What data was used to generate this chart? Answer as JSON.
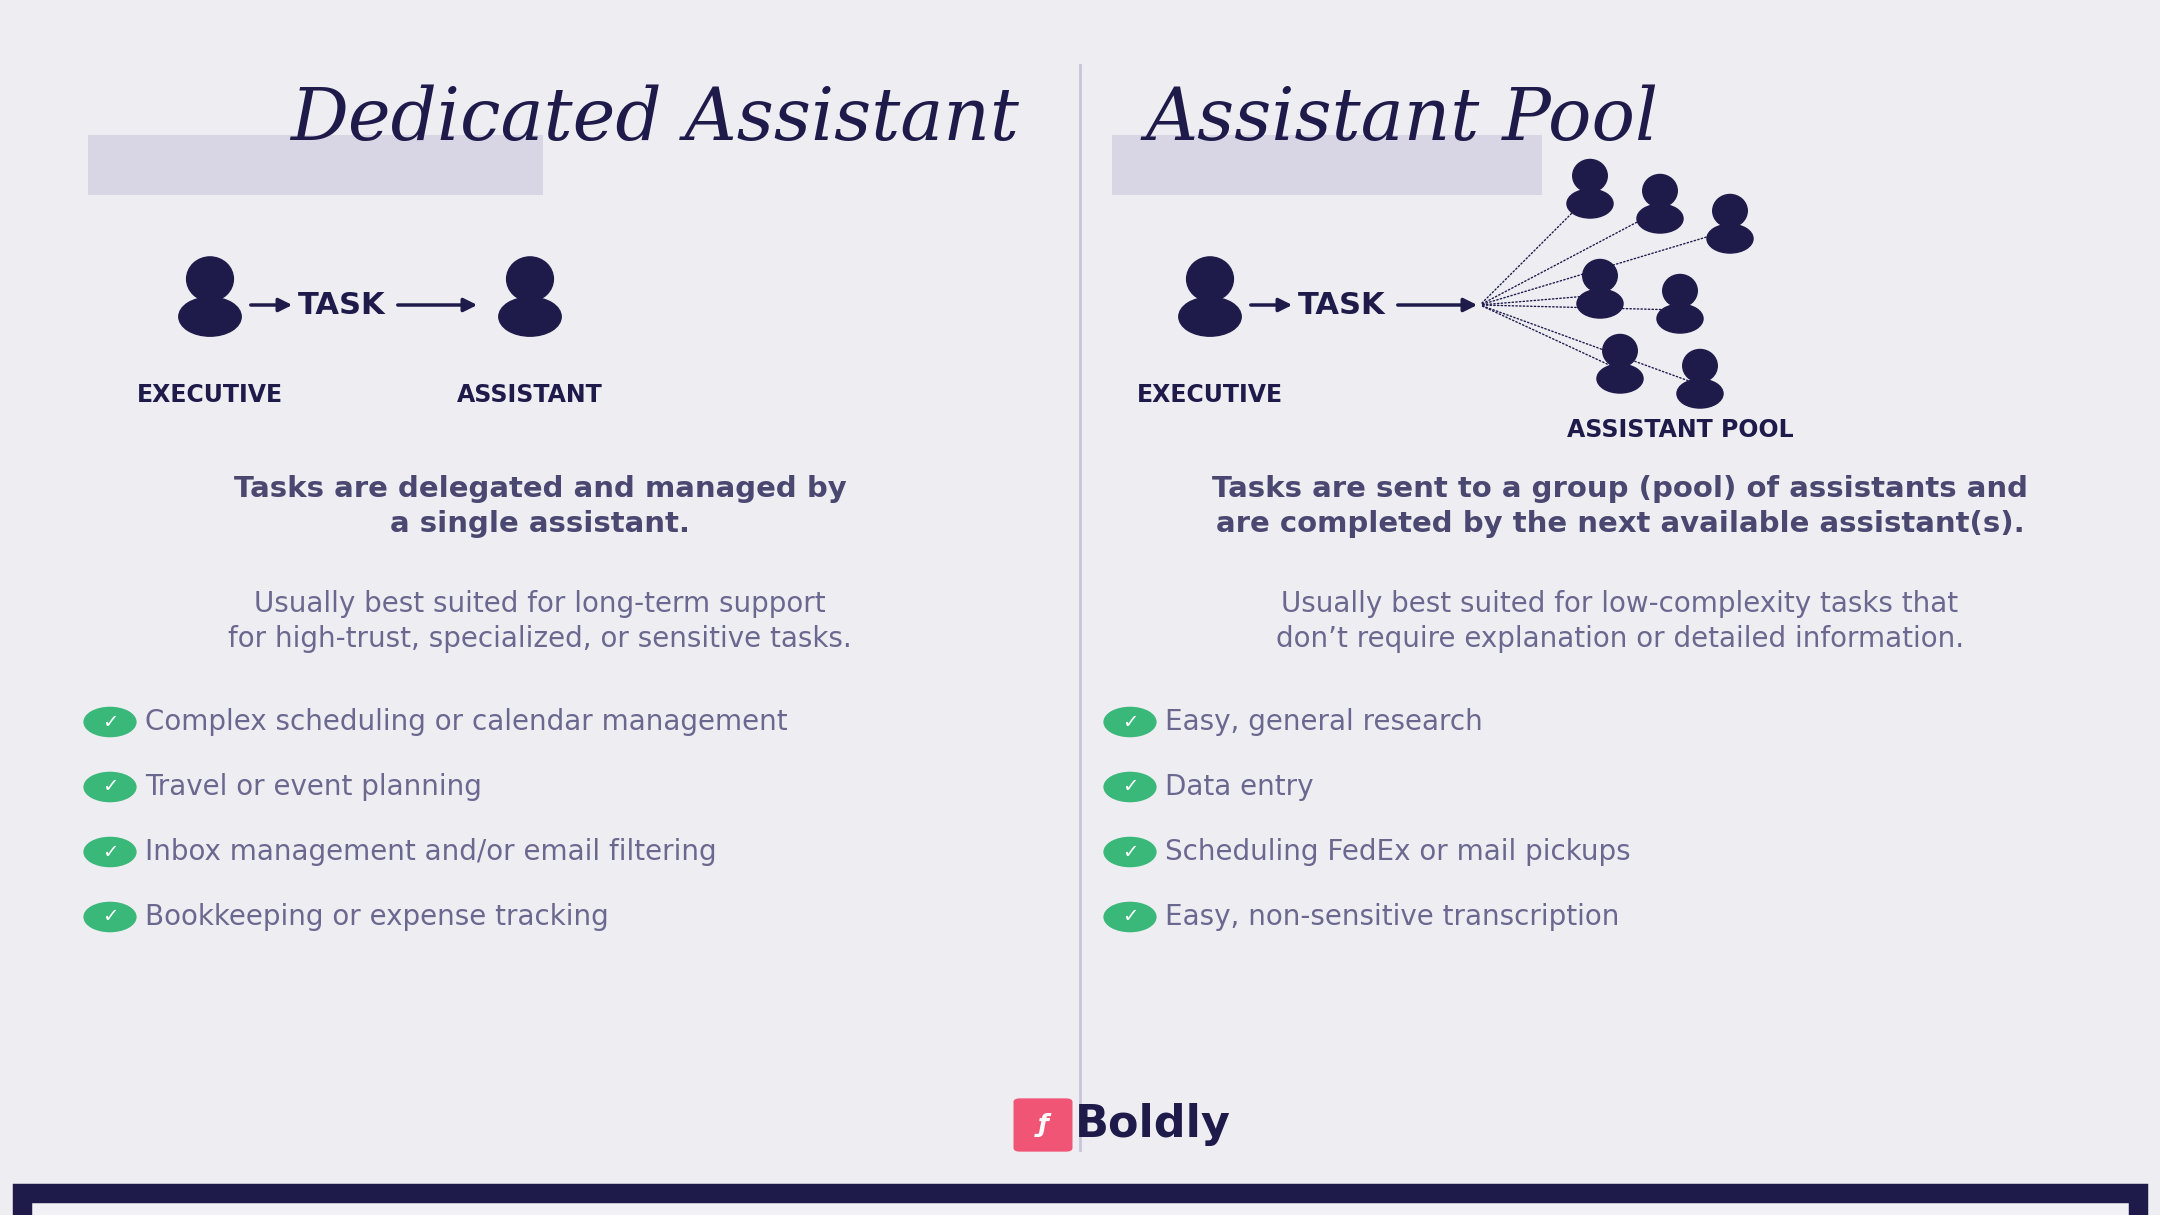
{
  "bg_color": "#eeedf2",
  "inner_bg": "#f2f1f6",
  "outer_border_color": "#1e1b4b",
  "divider_color": "#c8c5d8",
  "left_title": "Dedicated Assistant",
  "right_title": "Assistant Pool",
  "title_color": "#1e1b4b",
  "title_fontsize": 52,
  "title_underline_color": "#d8d5e5",
  "body_bold_color": "#4a4870",
  "body_color": "#6b6890",
  "icon_color": "#1e1b4b",
  "green_check_color": "#3ab87a",
  "arrow_color": "#1e1b4b",
  "exec_label": "EXECUTIVE",
  "asst_label": "ASSISTANT",
  "pool_label": "ASSISTANT POOL",
  "task_label": "TASK",
  "left_bold_text1": "Tasks are delegated and managed by",
  "left_bold_text2": "a single assistant.",
  "left_body_text1": "Usually best suited for long-term support",
  "left_body_text2": "for high-trust, specialized, or sensitive tasks.",
  "left_bullets": [
    "Complex scheduling or calendar management",
    "Travel or event planning",
    "Inbox management and/or email filtering",
    "Bookkeeping or expense tracking"
  ],
  "right_bold_text1": "Tasks are sent to a group (pool) of assistants and",
  "right_bold_text2": "are completed by the next available assistant(s).",
  "right_body_text1": "Usually best suited for low-complexity tasks that",
  "right_body_text2": "don’t require explanation or detailed information.",
  "right_bullets": [
    "Easy, general research",
    "Data entry",
    "Scheduling FedEx or mail pickups",
    "Easy, non-sensitive transcription"
  ],
  "boldly_text": "Boldly",
  "boldly_color": "#1e1b4b",
  "logo_pink": "#f05575",
  "logo_pink2": "#f08060",
  "bullet_fontsize": 20,
  "body_fontsize": 20,
  "bold_fontsize": 21
}
